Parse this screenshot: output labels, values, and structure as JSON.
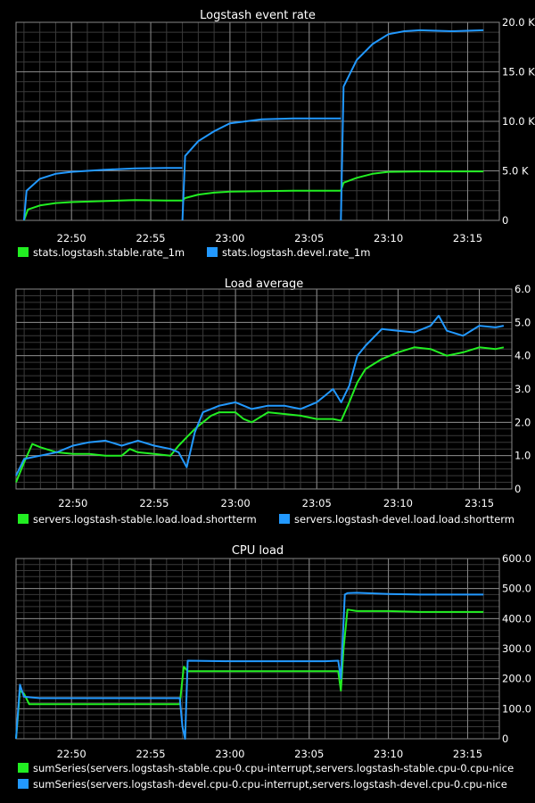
{
  "page": {
    "background": "#000000",
    "grid_major": "#888888",
    "grid_minor": "#3a3a3a"
  },
  "colors": {
    "stable": "#22ee22",
    "devel": "#2299ff"
  },
  "chart_data": [
    {
      "type": "line",
      "title": "Logstash event rate",
      "x_ticks": [
        "22:50",
        "22:55",
        "23:00",
        "23:05",
        "23:10",
        "23:15"
      ],
      "x_range": [
        "22:46:30",
        "23:17:00"
      ],
      "y_ticks": [
        "0",
        "5.0 K",
        "10.0 K",
        "15.0 K",
        "20.0 K"
      ],
      "ylim": [
        0,
        20000
      ],
      "grid": true,
      "legend_position": "bottom",
      "series": [
        {
          "name": "stats.logstash.stable.rate_1m",
          "color": "#22ee22",
          "points": [
            [
              "22:47",
              0
            ],
            [
              "22:47:15",
              1100
            ],
            [
              "22:48",
              1500
            ],
            [
              "22:49",
              1750
            ],
            [
              "22:50",
              1850
            ],
            [
              "22:52",
              1950
            ],
            [
              "22:54",
              2050
            ],
            [
              "22:56",
              2000
            ],
            [
              "22:57",
              2000
            ],
            [
              "22:57:10",
              2250
            ],
            [
              "22:58",
              2600
            ],
            [
              "22:59",
              2800
            ],
            [
              "23:00",
              2900
            ],
            [
              "23:02",
              2950
            ],
            [
              "23:04",
              3000
            ],
            [
              "23:06",
              3000
            ],
            [
              "23:07",
              3000
            ],
            [
              "23:07:10",
              3800
            ],
            [
              "23:08",
              4300
            ],
            [
              "23:09",
              4700
            ],
            [
              "23:10",
              4900
            ],
            [
              "23:12",
              4950
            ],
            [
              "23:14",
              4950
            ],
            [
              "23:16",
              4950
            ]
          ]
        },
        {
          "name": "stats.logstash.devel.rate_1m",
          "color": "#2299ff",
          "points": [
            [
              "22:47",
              0
            ],
            [
              "22:47:10",
              3000
            ],
            [
              "22:48",
              4200
            ],
            [
              "22:49",
              4700
            ],
            [
              "22:50",
              4900
            ],
            [
              "22:52",
              5100
            ],
            [
              "22:54",
              5250
            ],
            [
              "22:56",
              5300
            ],
            [
              "22:57",
              5300
            ],
            [
              "22:57:05",
              null
            ],
            [
              "22:57",
              0
            ],
            [
              "22:57:10",
              6500
            ],
            [
              "22:58",
              8000
            ],
            [
              "22:59",
              9000
            ],
            [
              "23:00",
              9800
            ],
            [
              "23:02",
              10200
            ],
            [
              "23:04",
              10300
            ],
            [
              "23:06",
              10300
            ],
            [
              "23:07",
              10300
            ],
            [
              "23:07:05",
              null
            ],
            [
              "23:07",
              0
            ],
            [
              "23:07:10",
              13500
            ],
            [
              "23:08",
              16200
            ],
            [
              "23:09",
              17800
            ],
            [
              "23:10",
              18800
            ],
            [
              "23:11",
              19100
            ],
            [
              "23:12",
              19200
            ],
            [
              "23:14",
              19100
            ],
            [
              "23:16",
              19200
            ]
          ]
        }
      ]
    },
    {
      "type": "line",
      "title": "Load average",
      "x_ticks": [
        "22:50",
        "22:55",
        "23:00",
        "23:05",
        "23:10",
        "23:15"
      ],
      "x_range": [
        "22:46:30",
        "23:17:00"
      ],
      "y_ticks": [
        "0",
        "1.0",
        "2.0",
        "3.0",
        "4.0",
        "5.0",
        "6.0"
      ],
      "ylim": [
        0,
        6
      ],
      "grid": true,
      "legend_position": "bottom",
      "series": [
        {
          "name": "servers.logstash-stable.load.load.shortterm",
          "color": "#22ee22",
          "points": [
            [
              "22:46:30",
              0.2
            ],
            [
              "22:47",
              0.8
            ],
            [
              "22:47:30",
              1.35
            ],
            [
              "22:48",
              1.25
            ],
            [
              "22:49",
              1.1
            ],
            [
              "22:50",
              1.05
            ],
            [
              "22:51",
              1.05
            ],
            [
              "22:52",
              1.0
            ],
            [
              "22:53",
              1.0
            ],
            [
              "22:53:30",
              1.2
            ],
            [
              "22:54",
              1.1
            ],
            [
              "22:55",
              1.05
            ],
            [
              "22:56",
              1.0
            ],
            [
              "22:56:30",
              1.3
            ],
            [
              "22:57",
              1.55
            ],
            [
              "22:57:30",
              1.8
            ],
            [
              "22:58",
              2.0
            ],
            [
              "22:58:30",
              2.2
            ],
            [
              "22:59",
              2.3
            ],
            [
              "23:00",
              2.3
            ],
            [
              "23:00:30",
              2.1
            ],
            [
              "23:01",
              2.0
            ],
            [
              "23:02",
              2.3
            ],
            [
              "23:03",
              2.25
            ],
            [
              "23:04",
              2.2
            ],
            [
              "23:05",
              2.1
            ],
            [
              "23:06",
              2.1
            ],
            [
              "23:06:30",
              2.05
            ],
            [
              "23:07",
              2.6
            ],
            [
              "23:07:30",
              3.2
            ],
            [
              "23:08",
              3.6
            ],
            [
              "23:09",
              3.9
            ],
            [
              "23:10",
              4.1
            ],
            [
              "23:11",
              4.25
            ],
            [
              "23:12",
              4.2
            ],
            [
              "23:12:30",
              4.1
            ],
            [
              "23:13",
              4.0
            ],
            [
              "23:14",
              4.1
            ],
            [
              "23:15",
              4.25
            ],
            [
              "23:16",
              4.2
            ],
            [
              "23:16:30",
              4.25
            ]
          ]
        },
        {
          "name": "servers.logstash-devel.load.load.shortterm",
          "color": "#2299ff",
          "points": [
            [
              "22:46:30",
              0.4
            ],
            [
              "22:47",
              0.9
            ],
            [
              "22:48",
              1.0
            ],
            [
              "22:49",
              1.1
            ],
            [
              "22:50",
              1.3
            ],
            [
              "22:51",
              1.4
            ],
            [
              "22:52",
              1.45
            ],
            [
              "22:53",
              1.3
            ],
            [
              "22:54",
              1.45
            ],
            [
              "22:55",
              1.3
            ],
            [
              "22:56",
              1.2
            ],
            [
              "22:56:30",
              1.1
            ],
            [
              "22:57",
              0.65
            ],
            [
              "22:57:30",
              1.7
            ],
            [
              "22:58",
              2.3
            ],
            [
              "22:59",
              2.5
            ],
            [
              "23:00",
              2.6
            ],
            [
              "23:01",
              2.4
            ],
            [
              "23:02",
              2.5
            ],
            [
              "23:03",
              2.5
            ],
            [
              "23:04",
              2.4
            ],
            [
              "23:05",
              2.6
            ],
            [
              "23:05:30",
              2.8
            ],
            [
              "23:06",
              3.0
            ],
            [
              "23:06:30",
              2.6
            ],
            [
              "23:07",
              3.1
            ],
            [
              "23:07:30",
              4.0
            ],
            [
              "23:08",
              4.3
            ],
            [
              "23:09",
              4.8
            ],
            [
              "23:10",
              4.75
            ],
            [
              "23:11",
              4.7
            ],
            [
              "23:12",
              4.9
            ],
            [
              "23:12:30",
              5.2
            ],
            [
              "23:13",
              4.75
            ],
            [
              "23:14",
              4.6
            ],
            [
              "23:15",
              4.9
            ],
            [
              "23:16",
              4.85
            ],
            [
              "23:16:30",
              4.9
            ]
          ]
        }
      ]
    },
    {
      "type": "line",
      "title": "CPU load",
      "x_ticks": [
        "22:50",
        "22:55",
        "23:00",
        "23:05",
        "23:10",
        "23:15"
      ],
      "x_range": [
        "22:46:30",
        "23:17:00"
      ],
      "y_ticks": [
        "0",
        "100.0",
        "200.0",
        "300.0",
        "400.0",
        "500.0",
        "600.0"
      ],
      "ylim": [
        0,
        600
      ],
      "grid": true,
      "legend_position": "bottom",
      "series": [
        {
          "name": "sumSeries(servers.logstash-stable.cpu-0.cpu-interrupt,servers.logstash-stable.cpu-0.cpu-nice",
          "color": "#22ee22",
          "points": [
            [
              "22:46:30",
              0
            ],
            [
              "22:46:45",
              160
            ],
            [
              "22:47",
              150
            ],
            [
              "22:47:20",
              115
            ],
            [
              "22:50",
              115
            ],
            [
              "22:53",
              115
            ],
            [
              "22:56:50",
              115
            ],
            [
              "22:57:05",
              240
            ],
            [
              "22:57:20",
              225
            ],
            [
              "23:00",
              225
            ],
            [
              "23:03",
              225
            ],
            [
              "23:06",
              225
            ],
            [
              "23:06:50",
              225
            ],
            [
              "23:07",
              160
            ],
            [
              "23:07:10",
              300
            ],
            [
              "23:07:25",
              430
            ],
            [
              "23:08",
              425
            ],
            [
              "23:10",
              425
            ],
            [
              "23:12",
              422
            ],
            [
              "23:14",
              422
            ],
            [
              "23:16",
              422
            ]
          ]
        },
        {
          "name": "sumSeries(servers.logstash-devel.cpu-0.cpu-interrupt,servers.logstash-devel.cpu-0.cpu-nice",
          "color": "#2299ff",
          "points": [
            [
              "22:46:30",
              0
            ],
            [
              "22:46:45",
              180
            ],
            [
              "22:47",
              140
            ],
            [
              "22:48",
              135
            ],
            [
              "22:50",
              135
            ],
            [
              "22:53",
              135
            ],
            [
              "22:56:50",
              135
            ],
            [
              "22:57:00",
              40
            ],
            [
              "22:57:10",
              0
            ],
            [
              "22:57:20",
              260
            ],
            [
              "23:00",
              258
            ],
            [
              "23:03",
              258
            ],
            [
              "23:06",
              258
            ],
            [
              "23:06:50",
              260
            ],
            [
              "23:07",
              200
            ],
            [
              "23:07:15",
              480
            ],
            [
              "23:07:25",
              485
            ],
            [
              "23:08",
              486
            ],
            [
              "23:10",
              482
            ],
            [
              "23:12",
              480
            ],
            [
              "23:14",
              480
            ],
            [
              "23:16",
              480
            ]
          ]
        }
      ]
    }
  ]
}
